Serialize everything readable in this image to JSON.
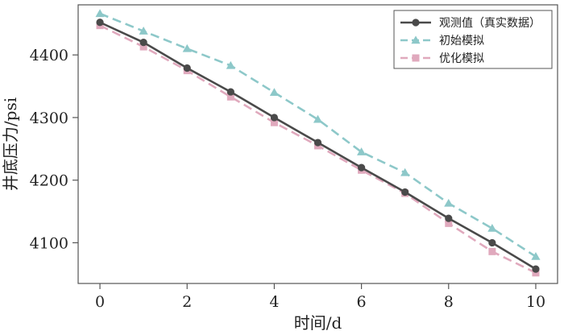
{
  "chart_data": {
    "type": "line",
    "xlabel": "时间/d",
    "ylabel": "井底压力/psi",
    "xlim": [
      -0.5,
      10.5
    ],
    "ylim": [
      4035,
      4480
    ],
    "xticks": [
      0,
      2,
      4,
      6,
      8,
      10
    ],
    "xtick_labels": [
      "0",
      "2",
      "4",
      "6",
      "8",
      "10"
    ],
    "yticks": [
      4100,
      4200,
      4300,
      4400
    ],
    "ytick_labels": [
      "4100",
      "4200",
      "4300",
      "4400"
    ],
    "grid": false,
    "legend_position": "top-right",
    "x": [
      0,
      1,
      2,
      3,
      4,
      5,
      6,
      7,
      8,
      9,
      10
    ],
    "series": [
      {
        "name": "观测值（真实数据）",
        "color": "#4a4a4a",
        "style": "solid",
        "marker": "circle",
        "values": [
          4452,
          4420,
          4379,
          4341,
          4300,
          4260,
          4220,
          4181,
          4139,
          4100,
          4058
        ]
      },
      {
        "name": "初始模拟",
        "color": "#8dc8c9",
        "style": "dashed",
        "marker": "triangle",
        "values": [
          4466,
          4438,
          4410,
          4383,
          4340,
          4297,
          4245,
          4212,
          4163,
          4123,
          4078
        ]
      },
      {
        "name": "优化模拟",
        "color": "#e0a9bd",
        "style": "dashed",
        "marker": "square",
        "values": [
          4447,
          4413,
          4375,
          4333,
          4292,
          4255,
          4216,
          4179,
          4131,
          4086,
          4052
        ]
      }
    ]
  }
}
